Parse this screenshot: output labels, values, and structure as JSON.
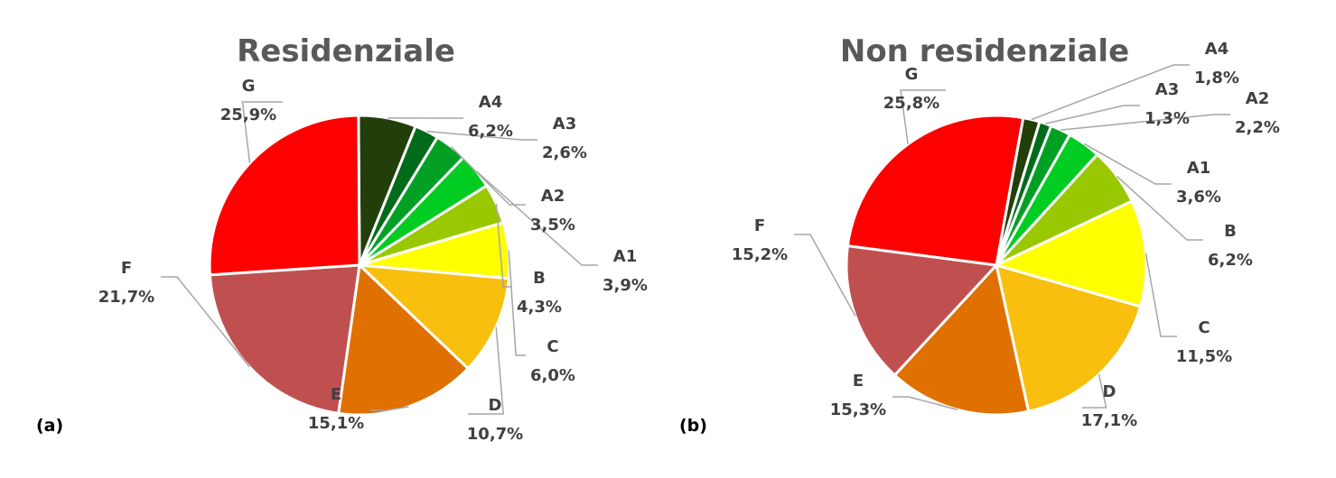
{
  "chart_data": [
    {
      "type": "pie",
      "title": "Residenziale",
      "panel_label": "(a)",
      "slices": [
        {
          "label": "A4",
          "value": 6.2,
          "display": "6,2%",
          "color": "#223f0a"
        },
        {
          "label": "A3",
          "value": 2.6,
          "display": "2,6%",
          "color": "#006b1a"
        },
        {
          "label": "A2",
          "value": 3.5,
          "display": "3,5%",
          "color": "#00a024"
        },
        {
          "label": "A1",
          "value": 3.9,
          "display": "3,9%",
          "color": "#00cc22"
        },
        {
          "label": "B",
          "value": 4.3,
          "display": "4,3%",
          "color": "#99c800"
        },
        {
          "label": "C",
          "value": 6.0,
          "display": "6,0%",
          "color": "#ffff00"
        },
        {
          "label": "D",
          "value": 10.7,
          "display": "10,7%",
          "color": "#f8bf0e"
        },
        {
          "label": "E",
          "value": 15.1,
          "display": "15,1%",
          "color": "#e07000"
        },
        {
          "label": "F",
          "value": 21.7,
          "display": "21,7%",
          "color": "#c05050"
        },
        {
          "label": "G",
          "value": 25.9,
          "display": "25,9%",
          "color": "#ff0000"
        }
      ]
    },
    {
      "type": "pie",
      "title": "Non residenziale",
      "panel_label": "(b)",
      "slices": [
        {
          "label": "A4",
          "value": 1.8,
          "display": "1,8%",
          "color": "#223f0a"
        },
        {
          "label": "A3",
          "value": 1.3,
          "display": "1,3%",
          "color": "#006b1a"
        },
        {
          "label": "A2",
          "value": 2.2,
          "display": "2,2%",
          "color": "#00a024"
        },
        {
          "label": "A1",
          "value": 3.6,
          "display": "3,6%",
          "color": "#00cc22"
        },
        {
          "label": "B",
          "value": 6.2,
          "display": "6,2%",
          "color": "#99c800"
        },
        {
          "label": "C",
          "value": 11.5,
          "display": "11,5%",
          "color": "#ffff00"
        },
        {
          "label": "D",
          "value": 17.1,
          "display": "17,1%",
          "color": "#f8bf0e"
        },
        {
          "label": "E",
          "value": 15.3,
          "display": "15,3%",
          "color": "#e07000"
        },
        {
          "label": "F",
          "value": 15.2,
          "display": "15,2%",
          "color": "#c05050"
        },
        {
          "label": "G",
          "value": 25.8,
          "display": "25,8%",
          "color": "#ff0000"
        }
      ]
    }
  ]
}
